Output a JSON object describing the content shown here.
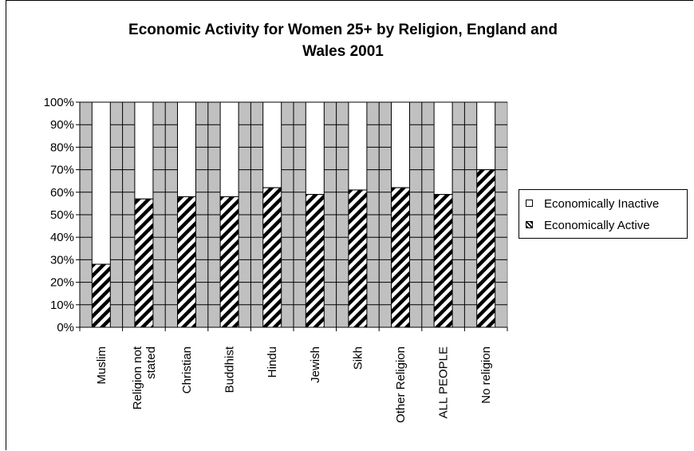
{
  "chart_data": {
    "type": "bar",
    "stacked": true,
    "title": "Economic Activity for Women 25+ by Religion, England and Wales 2001",
    "title_lines": [
      "Economic Activity for Women 25+ by Religion, England and",
      "Wales 2001"
    ],
    "categories": [
      "Muslim",
      "Religion not stated",
      "Christian",
      "Buddhist",
      "Hindu",
      "Jewish",
      "Sikh",
      "Other Religion",
      "ALL PEOPLE",
      "No religion"
    ],
    "category_label_lines": [
      [
        "Muslim"
      ],
      [
        "Religion not",
        "stated"
      ],
      [
        "Christian"
      ],
      [
        "Buddhist"
      ],
      [
        "Hindu"
      ],
      [
        "Jewish"
      ],
      [
        "Sikh"
      ],
      [
        "Other Religion"
      ],
      [
        "ALL PEOPLE"
      ],
      [
        "No religion"
      ]
    ],
    "series": [
      {
        "name": "Economically Active",
        "values": [
          28,
          57,
          58,
          58,
          62,
          59,
          61,
          62,
          59,
          70
        ],
        "fill": "hatched"
      },
      {
        "name": "Economically Inactive",
        "values": [
          72,
          43,
          42,
          42,
          38,
          41,
          39,
          38,
          41,
          30
        ],
        "fill": "#ffffff"
      }
    ],
    "y_tick_labels": [
      "0%",
      "10%",
      "20%",
      "30%",
      "40%",
      "50%",
      "60%",
      "70%",
      "80%",
      "90%",
      "100%"
    ],
    "ylim": [
      0,
      100
    ],
    "grid": true,
    "plot_background": "#c0c0c0",
    "legend_position": "right",
    "legend_entries": [
      "Economically Inactive",
      "Economically Active"
    ]
  }
}
